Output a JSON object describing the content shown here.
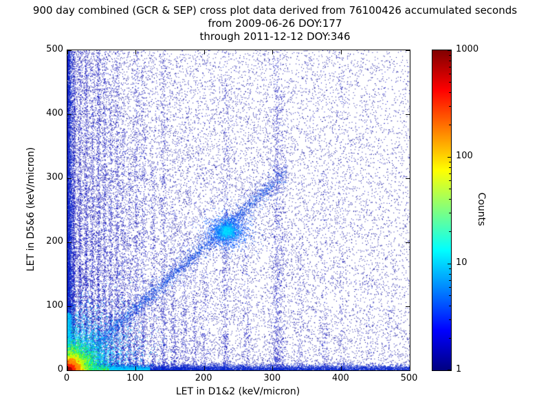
{
  "chart_data": {
    "type": "heatmap",
    "title": "900 day combined (GCR & SEP) cross plot data derived from 76100426 accumulated seconds",
    "subtitle_from": "from 2009-06-26 DOY:177",
    "subtitle_through": "through 2011-12-12 DOY:346",
    "xlabel": "LET in D1&2 (keV/micron)",
    "ylabel": "LET in D5&6 (keV/micron)",
    "xlim": [
      0,
      500
    ],
    "ylim": [
      0,
      500
    ],
    "xticks": [
      0,
      100,
      200,
      300,
      400,
      500
    ],
    "yticks": [
      0,
      100,
      200,
      300,
      400,
      500
    ],
    "grid": false,
    "accumulated_seconds": 76100426,
    "colorbar": {
      "label": "Counts",
      "scale": "log",
      "min": 1,
      "max": 1000,
      "ticks": [
        1,
        10,
        100,
        1000
      ],
      "colormap": "jet",
      "stops": [
        [
          "#000080",
          0
        ],
        [
          "#0000ff",
          12.5
        ],
        [
          "#00ffff",
          37.5
        ],
        [
          "#ffff00",
          62.5
        ],
        [
          "#ff0000",
          87.5
        ],
        [
          "#800000",
          100
        ]
      ]
    },
    "features": [
      {
        "kind": "sprinkle",
        "n": 6500,
        "xpow": 1,
        "ypow": 1,
        "color": "#000099"
      },
      {
        "kind": "sprinkle",
        "n": 12000,
        "xpow": 2.4,
        "ypow": 1.4,
        "color": "#000099"
      },
      {
        "kind": "sprinkle",
        "n": 4000,
        "xpow": 3.5,
        "ypow": 1.1,
        "color": "#0000cc"
      },
      {
        "kind": "blob",
        "cx": 250,
        "cy": 310,
        "sx": 95,
        "sy": 115,
        "n": 1100,
        "color": "#000099"
      },
      {
        "kind": "vstreaks",
        "ypow": 1.9,
        "color": "#0000b8",
        "alt": "#0033ee",
        "altp": 0.08,
        "streaks": [
          [
            9,
            1.2,
            500,
            1200
          ],
          [
            18,
            1.5,
            500,
            900
          ],
          [
            27,
            1.5,
            500,
            1000
          ],
          [
            36,
            1.6,
            480,
            800
          ],
          [
            45,
            1.8,
            500,
            1100
          ],
          [
            54,
            1.8,
            490,
            850
          ],
          [
            63,
            1.8,
            450,
            650
          ],
          [
            72,
            2,
            500,
            750
          ],
          [
            81,
            2,
            380,
            480
          ],
          [
            90,
            2,
            310,
            380
          ],
          [
            100,
            2.2,
            500,
            600
          ],
          [
            110,
            2.2,
            480,
            480
          ],
          [
            125,
            2.4,
            320,
            320
          ],
          [
            140,
            2.6,
            500,
            520
          ],
          [
            155,
            2.6,
            260,
            260
          ],
          [
            170,
            2.8,
            210,
            210
          ],
          [
            185,
            2.8,
            180,
            170
          ],
          [
            200,
            3,
            160,
            150
          ],
          [
            230,
            3,
            500,
            480
          ],
          [
            260,
            3,
            200,
            160
          ],
          [
            305,
            3,
            500,
            700
          ],
          [
            313,
            3,
            460,
            330
          ],
          [
            340,
            3,
            200,
            120
          ],
          [
            375,
            3,
            310,
            170
          ],
          [
            400,
            3,
            490,
            150
          ],
          [
            440,
            3,
            150,
            60
          ],
          [
            470,
            3,
            120,
            50
          ]
        ]
      },
      {
        "kind": "band",
        "axis": "x",
        "len": 500,
        "p": 1.4,
        "thick": 4.5,
        "n": 7000,
        "color": "#0022cc"
      },
      {
        "kind": "band",
        "axis": "x",
        "len": 120,
        "p": 1.6,
        "thick": 3.2,
        "n": 2600,
        "color": "#00c8ff"
      },
      {
        "kind": "band",
        "axis": "x",
        "len": 60,
        "p": 1.5,
        "thick": 2.8,
        "n": 1400,
        "color": "#55ee00"
      },
      {
        "kind": "band",
        "axis": "x",
        "len": 30,
        "p": 1.5,
        "thick": 2.0,
        "n": 1100,
        "color": "#ffee00"
      },
      {
        "kind": "band",
        "axis": "x",
        "len": 14,
        "p": 1.5,
        "thick": 1.6,
        "n": 700,
        "color": "#ff8800"
      },
      {
        "kind": "band",
        "axis": "y",
        "len": 500,
        "p": 1.6,
        "thick": 3.6,
        "n": 4200,
        "color": "#0022cc"
      },
      {
        "kind": "band",
        "axis": "y",
        "len": 90,
        "p": 1.6,
        "thick": 2.6,
        "n": 1500,
        "color": "#00c8ff"
      },
      {
        "kind": "band",
        "axis": "y",
        "len": 28,
        "p": 1.5,
        "thick": 1.8,
        "n": 800,
        "color": "#66ee00"
      },
      {
        "kind": "band",
        "axis": "y",
        "len": 16,
        "p": 1.5,
        "thick": 1.5,
        "n": 500,
        "color": "#ffee00"
      },
      {
        "kind": "diag",
        "x0": 8,
        "x1": 320,
        "p": 1.15,
        "slope": 0.97,
        "spread": 11,
        "n": 2600,
        "color": "#0022cc",
        "alt": "#0077ff",
        "altp": 0.12
      },
      {
        "kind": "diag",
        "x0": 8,
        "x1": 300,
        "p": 1.1,
        "slope": 0.97,
        "spread": 4,
        "n": 900,
        "color": "#0055ee"
      },
      {
        "kind": "blob",
        "cx": 233,
        "cy": 218,
        "sx": 16,
        "sy": 13,
        "n": 1500,
        "color": "#0055ff"
      },
      {
        "kind": "blob",
        "cx": 233,
        "cy": 218,
        "sx": 8,
        "sy": 7,
        "n": 700,
        "color": "#00aaff"
      },
      {
        "kind": "blob",
        "cx": 233,
        "cy": 218,
        "sx": 4,
        "sy": 4,
        "n": 250,
        "color": "#00e0ff"
      },
      {
        "kind": "glow",
        "sx": 46,
        "sy": 46,
        "n": 2600,
        "color": "#00b4ff"
      },
      {
        "kind": "glow",
        "sx": 30,
        "sy": 30,
        "n": 2200,
        "color": "#00e8ff"
      },
      {
        "kind": "glow",
        "sx": 20,
        "sy": 20,
        "n": 2000,
        "color": "#22ff44"
      },
      {
        "kind": "glow",
        "sx": 13,
        "sy": 13,
        "n": 1800,
        "color": "#ccff00"
      },
      {
        "kind": "glow",
        "sx": 9,
        "sy": 9,
        "n": 1600,
        "color": "#ffee00"
      },
      {
        "kind": "glow",
        "sx": 6,
        "sy": 6,
        "n": 1400,
        "color": "#ff8800",
        "s": 2
      },
      {
        "kind": "glow",
        "sx": 3.5,
        "sy": 3.5,
        "n": 1200,
        "color": "#ff2200",
        "s": 2
      },
      {
        "kind": "glow",
        "sx": 1.8,
        "sy": 1.8,
        "n": 700,
        "color": "#aa0000",
        "s": 2
      }
    ]
  }
}
